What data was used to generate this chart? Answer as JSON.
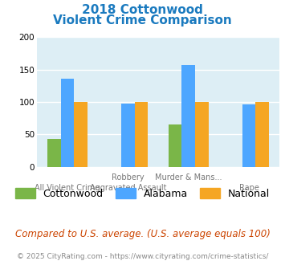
{
  "title_line1": "2018 Cottonwood",
  "title_line2": "Violent Crime Comparison",
  "cat_labels_top": [
    "",
    "Robbery",
    "Murder & Mans...",
    ""
  ],
  "cat_labels_bottom": [
    "All Violent Crime",
    "Aggravated Assault",
    "",
    "Rape"
  ],
  "series": {
    "Cottonwood": [
      43,
      0,
      66,
      0
    ],
    "Alabama": [
      136,
      98,
      157,
      96
    ],
    "National": [
      100,
      100,
      100,
      100
    ]
  },
  "colors": {
    "Cottonwood": "#7ab648",
    "Alabama": "#4da6ff",
    "National": "#f5a623"
  },
  "ylim": [
    0,
    200
  ],
  "yticks": [
    0,
    50,
    100,
    150,
    200
  ],
  "title_color": "#1a7abf",
  "bg_color": "#ddeef5",
  "footnote": "Compared to U.S. average. (U.S. average equals 100)",
  "copyright": "© 2025 CityRating.com - https://www.cityrating.com/crime-statistics/",
  "footnote_color": "#cc4400",
  "copyright_color": "#888888"
}
